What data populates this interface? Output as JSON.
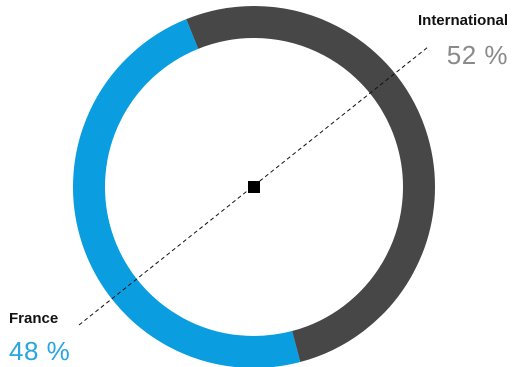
{
  "chart_data": {
    "type": "pie",
    "style": "donut",
    "slices": [
      {
        "label": "International",
        "value": 52,
        "display": "52 %",
        "color": "#474747"
      },
      {
        "label": "France",
        "value": 48,
        "display": "48 %",
        "color": "#0a9de0"
      }
    ]
  },
  "colors": {
    "international_value": "#8a8a8a",
    "france_value": "#27a6e0",
    "center_marker": "#000000"
  }
}
